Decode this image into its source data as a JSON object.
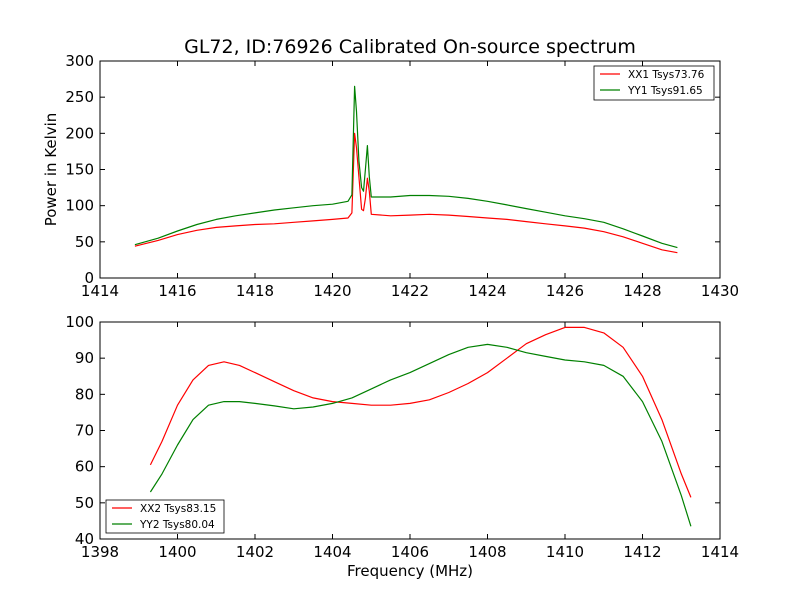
{
  "figure": {
    "title": "GL72, ID:76926 Calibrated On-source spectrum",
    "background": "#ffffff"
  },
  "chart_data": [
    {
      "type": "line",
      "title": "GL72, ID:76926 Calibrated On-source spectrum",
      "xlabel": "",
      "ylabel": "Power in Kelvin",
      "xlim": [
        1414,
        1430
      ],
      "ylim": [
        0,
        300
      ],
      "xticks": [
        "1414",
        "1416",
        "1418",
        "1420",
        "1422",
        "1424",
        "1426",
        "1428",
        "1430"
      ],
      "yticks": [
        "0",
        "50",
        "100",
        "150",
        "200",
        "250",
        "300"
      ],
      "grid": false,
      "legend_position": "top-right",
      "series": [
        {
          "name": "XX1 Tsys73.76",
          "color": "#ff0000",
          "points": [
            [
              1414.9,
              44
            ],
            [
              1415.5,
              52
            ],
            [
              1416.0,
              60
            ],
            [
              1416.5,
              66
            ],
            [
              1417.0,
              70
            ],
            [
              1417.5,
              72
            ],
            [
              1418.0,
              74
            ],
            [
              1418.5,
              75
            ],
            [
              1419.0,
              77
            ],
            [
              1419.5,
              79
            ],
            [
              1420.0,
              81
            ],
            [
              1420.4,
              83
            ],
            [
              1420.5,
              90
            ],
            [
              1420.57,
              200
            ],
            [
              1420.62,
              180
            ],
            [
              1420.68,
              140
            ],
            [
              1420.75,
              95
            ],
            [
              1420.8,
              93
            ],
            [
              1420.85,
              110
            ],
            [
              1420.9,
              138
            ],
            [
              1420.95,
              120
            ],
            [
              1421.0,
              88
            ],
            [
              1421.5,
              86
            ],
            [
              1422.0,
              87
            ],
            [
              1422.5,
              88
            ],
            [
              1423.0,
              87
            ],
            [
              1423.5,
              85
            ],
            [
              1424.0,
              83
            ],
            [
              1424.5,
              81
            ],
            [
              1425.0,
              78
            ],
            [
              1425.5,
              75
            ],
            [
              1426.0,
              72
            ],
            [
              1426.5,
              69
            ],
            [
              1427.0,
              64
            ],
            [
              1427.5,
              57
            ],
            [
              1428.0,
              48
            ],
            [
              1428.5,
              39
            ],
            [
              1428.9,
              35
            ]
          ]
        },
        {
          "name": "YY1 Tsys91.65",
          "color": "#008000",
          "points": [
            [
              1414.9,
              46
            ],
            [
              1415.5,
              55
            ],
            [
              1416.0,
              65
            ],
            [
              1416.5,
              74
            ],
            [
              1417.0,
              81
            ],
            [
              1417.5,
              86
            ],
            [
              1418.0,
              90
            ],
            [
              1418.5,
              94
            ],
            [
              1419.0,
              97
            ],
            [
              1419.5,
              100
            ],
            [
              1420.0,
              102
            ],
            [
              1420.4,
              106
            ],
            [
              1420.5,
              115
            ],
            [
              1420.57,
              265
            ],
            [
              1420.62,
              230
            ],
            [
              1420.68,
              162
            ],
            [
              1420.75,
              125
            ],
            [
              1420.8,
              120
            ],
            [
              1420.85,
              150
            ],
            [
              1420.9,
              183
            ],
            [
              1420.95,
              140
            ],
            [
              1421.0,
              112
            ],
            [
              1421.5,
              112
            ],
            [
              1422.0,
              114
            ],
            [
              1422.5,
              114
            ],
            [
              1423.0,
              113
            ],
            [
              1423.5,
              110
            ],
            [
              1424.0,
              106
            ],
            [
              1424.5,
              101
            ],
            [
              1425.0,
              96
            ],
            [
              1425.5,
              91
            ],
            [
              1426.0,
              86
            ],
            [
              1426.5,
              82
            ],
            [
              1427.0,
              77
            ],
            [
              1427.5,
              68
            ],
            [
              1428.0,
              58
            ],
            [
              1428.5,
              48
            ],
            [
              1428.9,
              42
            ]
          ]
        }
      ]
    },
    {
      "type": "line",
      "title": "",
      "xlabel": "Frequency (MHz)",
      "ylabel": "",
      "xlim": [
        1398,
        1414
      ],
      "ylim": [
        40,
        100
      ],
      "xticks": [
        "1398",
        "1400",
        "1402",
        "1404",
        "1406",
        "1408",
        "1410",
        "1412",
        "1414"
      ],
      "yticks": [
        "40",
        "50",
        "60",
        "70",
        "80",
        "90",
        "100"
      ],
      "grid": false,
      "legend_position": "bottom-left",
      "series": [
        {
          "name": "XX2 Tsys83.15",
          "color": "#ff0000",
          "points": [
            [
              1399.3,
              60.5
            ],
            [
              1399.6,
              67
            ],
            [
              1400.0,
              77
            ],
            [
              1400.4,
              84
            ],
            [
              1400.8,
              88
            ],
            [
              1401.2,
              89
            ],
            [
              1401.6,
              88
            ],
            [
              1402.0,
              86
            ],
            [
              1402.5,
              83.5
            ],
            [
              1403.0,
              81
            ],
            [
              1403.5,
              79
            ],
            [
              1404.0,
              78
            ],
            [
              1404.5,
              77.5
            ],
            [
              1405.0,
              77
            ],
            [
              1405.5,
              77
            ],
            [
              1406.0,
              77.5
            ],
            [
              1406.5,
              78.5
            ],
            [
              1407.0,
              80.5
            ],
            [
              1407.5,
              83
            ],
            [
              1408.0,
              86
            ],
            [
              1408.5,
              90
            ],
            [
              1409.0,
              94
            ],
            [
              1409.5,
              96.5
            ],
            [
              1410.0,
              98.5
            ],
            [
              1410.5,
              98.5
            ],
            [
              1411.0,
              97
            ],
            [
              1411.5,
              93
            ],
            [
              1412.0,
              85
            ],
            [
              1412.5,
              73
            ],
            [
              1413.0,
              58
            ],
            [
              1413.25,
              51.5
            ]
          ]
        },
        {
          "name": "YY2 Tsys80.04",
          "color": "#008000",
          "points": [
            [
              1399.3,
              53
            ],
            [
              1399.6,
              58
            ],
            [
              1400.0,
              66
            ],
            [
              1400.4,
              73
            ],
            [
              1400.8,
              77
            ],
            [
              1401.2,
              78
            ],
            [
              1401.6,
              78
            ],
            [
              1402.0,
              77.5
            ],
            [
              1402.5,
              76.8
            ],
            [
              1403.0,
              76
            ],
            [
              1403.5,
              76.5
            ],
            [
              1404.0,
              77.5
            ],
            [
              1404.5,
              79
            ],
            [
              1405.0,
              81.5
            ],
            [
              1405.5,
              84
            ],
            [
              1406.0,
              86
            ],
            [
              1406.5,
              88.5
            ],
            [
              1407.0,
              91
            ],
            [
              1407.5,
              93
            ],
            [
              1408.0,
              93.8
            ],
            [
              1408.5,
              93
            ],
            [
              1409.0,
              91.5
            ],
            [
              1409.5,
              90.5
            ],
            [
              1410.0,
              89.5
            ],
            [
              1410.5,
              89
            ],
            [
              1411.0,
              88
            ],
            [
              1411.5,
              85
            ],
            [
              1412.0,
              78
            ],
            [
              1412.5,
              67
            ],
            [
              1413.0,
              52
            ],
            [
              1413.25,
              43.5
            ]
          ]
        }
      ]
    }
  ]
}
